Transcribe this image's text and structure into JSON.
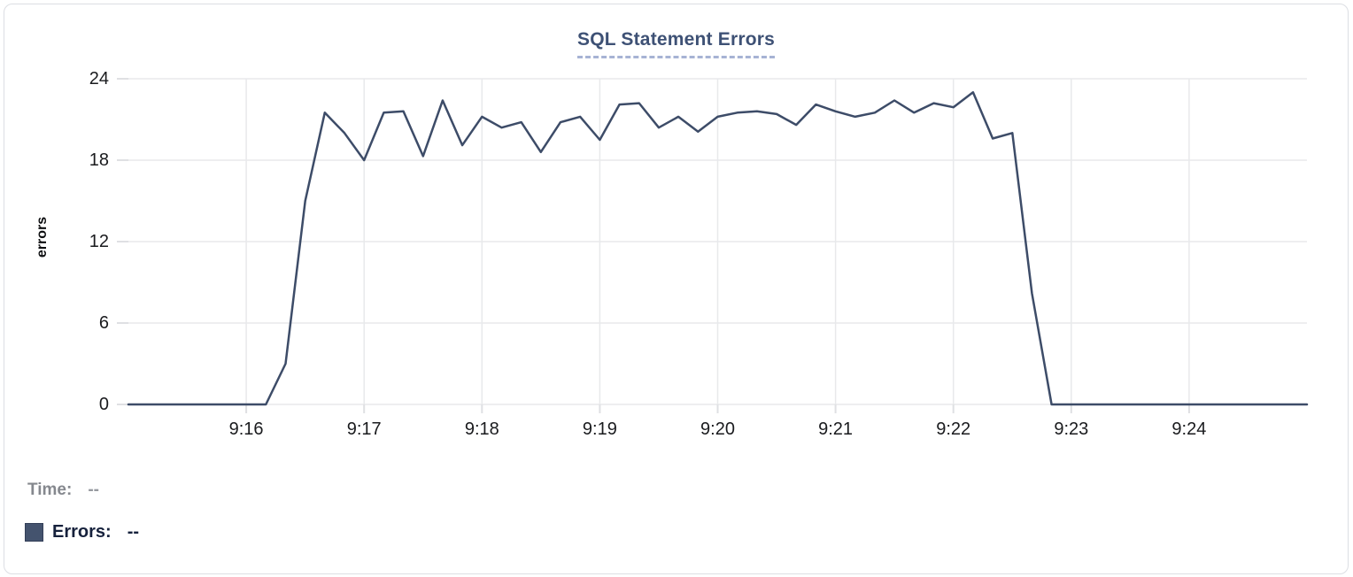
{
  "header": {
    "title": "SQL Statement Errors"
  },
  "colors": {
    "title": "#3e5175",
    "title_underline": "#a7b3d4",
    "line": "#3d4c68",
    "grid": "#e8e9eb",
    "axis_tick": "#dfe0e3",
    "legend_swatch": "#44536e",
    "card_border": "#dcdee3"
  },
  "readout": {
    "time_label": "Time:",
    "time_value": "--",
    "errors_label": "Errors:",
    "errors_value": "--"
  },
  "chart_data": {
    "type": "line",
    "title": "SQL Statement Errors",
    "xlabel": "",
    "ylabel": "errors",
    "series_name": "Errors",
    "ylim": [
      0,
      24
    ],
    "y_ticks": [
      0,
      6,
      12,
      18,
      24
    ],
    "x_ticks": [
      "9:16",
      "9:17",
      "9:18",
      "9:19",
      "9:20",
      "9:21",
      "9:22",
      "9:23",
      "9:24"
    ],
    "x_range": [
      "9:15:00",
      "9:25:00"
    ],
    "grid": true,
    "legend_position": "bottom-left",
    "x": [
      "9:15:00",
      "9:15:10",
      "9:15:20",
      "9:15:30",
      "9:15:40",
      "9:15:50",
      "9:16:00",
      "9:16:10",
      "9:16:20",
      "9:16:30",
      "9:16:40",
      "9:16:50",
      "9:17:00",
      "9:17:10",
      "9:17:20",
      "9:17:30",
      "9:17:40",
      "9:17:50",
      "9:18:00",
      "9:18:10",
      "9:18:20",
      "9:18:30",
      "9:18:40",
      "9:18:50",
      "9:19:00",
      "9:19:10",
      "9:19:20",
      "9:19:30",
      "9:19:40",
      "9:19:50",
      "9:20:00",
      "9:20:10",
      "9:20:20",
      "9:20:30",
      "9:20:40",
      "9:20:50",
      "9:21:00",
      "9:21:10",
      "9:21:20",
      "9:21:30",
      "9:21:40",
      "9:21:50",
      "9:22:00",
      "9:22:10",
      "9:22:20",
      "9:22:30",
      "9:22:40",
      "9:22:50",
      "9:23:00",
      "9:23:10",
      "9:23:20",
      "9:23:30",
      "9:23:40",
      "9:23:50",
      "9:24:00",
      "9:24:10",
      "9:24:20",
      "9:24:30",
      "9:24:40",
      "9:24:50",
      "9:25:00"
    ],
    "y": [
      0,
      0,
      0,
      0,
      0,
      0,
      0,
      0,
      3,
      15,
      21.5,
      20,
      18,
      21.5,
      21.6,
      18.3,
      22.4,
      19.1,
      21.2,
      20.4,
      20.8,
      18.6,
      20.8,
      21.2,
      19.5,
      22.1,
      22.2,
      20.4,
      21.2,
      20.1,
      21.2,
      21.5,
      21.6,
      21.4,
      20.6,
      22.1,
      21.6,
      21.2,
      21.5,
      22.4,
      21.5,
      22.2,
      21.9,
      23,
      19.6,
      20,
      8.2,
      0,
      0,
      0,
      0,
      0,
      0,
      0,
      0,
      0,
      0,
      0,
      0,
      0,
      0
    ]
  }
}
